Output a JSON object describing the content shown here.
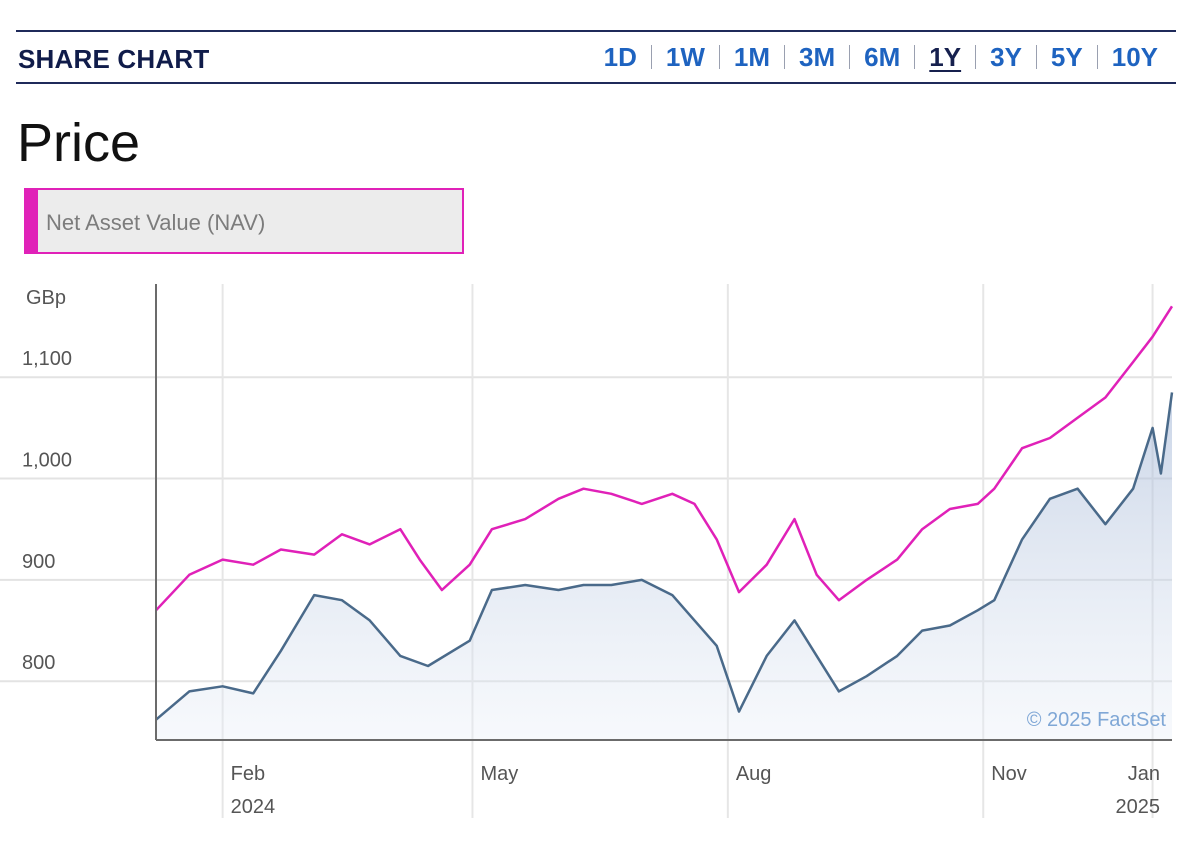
{
  "header": {
    "title": "SHARE CHART",
    "ranges": [
      "1D",
      "1W",
      "1M",
      "3M",
      "6M",
      "1Y",
      "3Y",
      "5Y",
      "10Y"
    ],
    "active_range": "1Y"
  },
  "section_title": "Price",
  "legend": {
    "label": "Net Asset Value (NAV)",
    "color": "#e021b8"
  },
  "chart_data": {
    "type": "line",
    "ylabel": "GBp",
    "y_ticks": [
      800,
      900,
      1000,
      1100
    ],
    "y_tick_labels": [
      "800",
      "900",
      "1,000",
      "1,100"
    ],
    "ylim": [
      742,
      1192
    ],
    "x_ticks": [
      {
        "month": "Feb",
        "year": "2024",
        "date": "2024-02-01"
      },
      {
        "month": "May",
        "year": "",
        "date": "2024-05-01"
      },
      {
        "month": "Aug",
        "year": "",
        "date": "2024-08-01"
      },
      {
        "month": "Nov",
        "year": "",
        "date": "2024-11-01"
      },
      {
        "month": "Jan",
        "year": "2025",
        "date": "2025-01-01"
      }
    ],
    "xlim": [
      "2024-01-08",
      "2025-01-08"
    ],
    "grid": true,
    "credit": "© 2025 FactSet",
    "series": [
      {
        "name": "Net Asset Value (NAV)",
        "color": "#e021b8",
        "fill": false,
        "points": [
          [
            "2024-01-08",
            870
          ],
          [
            "2024-01-20",
            905
          ],
          [
            "2024-02-01",
            920
          ],
          [
            "2024-02-12",
            915
          ],
          [
            "2024-02-22",
            930
          ],
          [
            "2024-03-05",
            925
          ],
          [
            "2024-03-15",
            945
          ],
          [
            "2024-03-25",
            935
          ],
          [
            "2024-04-05",
            950
          ],
          [
            "2024-04-12",
            920
          ],
          [
            "2024-04-20",
            890
          ],
          [
            "2024-04-30",
            915
          ],
          [
            "2024-05-08",
            950
          ],
          [
            "2024-05-20",
            960
          ],
          [
            "2024-06-01",
            980
          ],
          [
            "2024-06-10",
            990
          ],
          [
            "2024-06-20",
            985
          ],
          [
            "2024-07-01",
            975
          ],
          [
            "2024-07-12",
            985
          ],
          [
            "2024-07-20",
            975
          ],
          [
            "2024-07-28",
            940
          ],
          [
            "2024-08-05",
            888
          ],
          [
            "2024-08-15",
            915
          ],
          [
            "2024-08-25",
            960
          ],
          [
            "2024-09-02",
            905
          ],
          [
            "2024-09-10",
            880
          ],
          [
            "2024-09-20",
            900
          ],
          [
            "2024-10-01",
            920
          ],
          [
            "2024-10-10",
            950
          ],
          [
            "2024-10-20",
            970
          ],
          [
            "2024-10-30",
            975
          ],
          [
            "2024-11-05",
            990
          ],
          [
            "2024-11-15",
            1030
          ],
          [
            "2024-11-25",
            1040
          ],
          [
            "2024-12-05",
            1060
          ],
          [
            "2024-12-15",
            1080
          ],
          [
            "2024-12-25",
            1115
          ],
          [
            "2025-01-01",
            1140
          ],
          [
            "2025-01-08",
            1170
          ]
        ]
      },
      {
        "name": "",
        "color": "#4a6a8a",
        "fill": true,
        "points": [
          [
            "2024-01-08",
            762
          ],
          [
            "2024-01-20",
            790
          ],
          [
            "2024-02-01",
            795
          ],
          [
            "2024-02-12",
            788
          ],
          [
            "2024-02-22",
            830
          ],
          [
            "2024-03-05",
            885
          ],
          [
            "2024-03-15",
            880
          ],
          [
            "2024-03-25",
            860
          ],
          [
            "2024-04-05",
            825
          ],
          [
            "2024-04-15",
            815
          ],
          [
            "2024-04-30",
            840
          ],
          [
            "2024-05-08",
            890
          ],
          [
            "2024-05-20",
            895
          ],
          [
            "2024-06-01",
            890
          ],
          [
            "2024-06-10",
            895
          ],
          [
            "2024-06-20",
            895
          ],
          [
            "2024-07-01",
            900
          ],
          [
            "2024-07-12",
            885
          ],
          [
            "2024-07-20",
            860
          ],
          [
            "2024-07-28",
            835
          ],
          [
            "2024-08-05",
            770
          ],
          [
            "2024-08-15",
            825
          ],
          [
            "2024-08-25",
            860
          ],
          [
            "2024-09-02",
            825
          ],
          [
            "2024-09-10",
            790
          ],
          [
            "2024-09-20",
            805
          ],
          [
            "2024-10-01",
            825
          ],
          [
            "2024-10-10",
            850
          ],
          [
            "2024-10-20",
            855
          ],
          [
            "2024-10-30",
            870
          ],
          [
            "2024-11-05",
            880
          ],
          [
            "2024-11-15",
            940
          ],
          [
            "2024-11-25",
            980
          ],
          [
            "2024-12-05",
            990
          ],
          [
            "2024-12-15",
            955
          ],
          [
            "2024-12-25",
            990
          ],
          [
            "2025-01-01",
            1050
          ],
          [
            "2025-01-04",
            1005
          ],
          [
            "2025-01-08",
            1085
          ]
        ]
      }
    ]
  }
}
